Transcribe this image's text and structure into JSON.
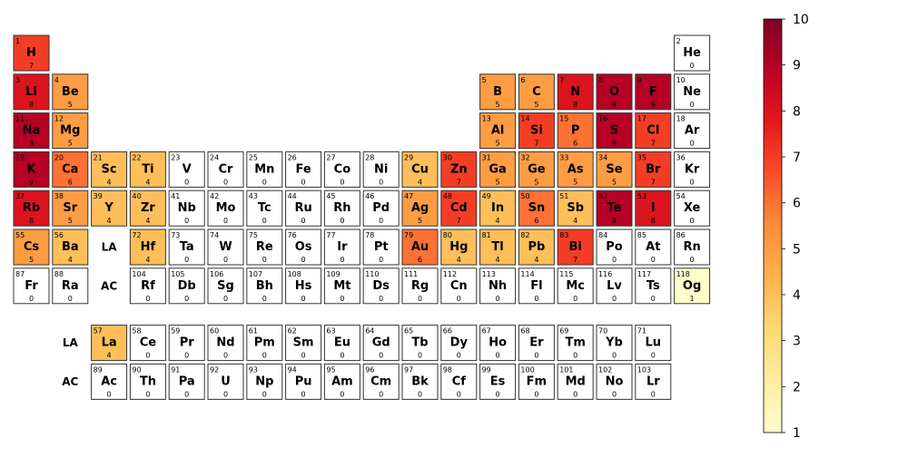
{
  "chart_data": {
    "type": "heatmap",
    "title": "",
    "layout": "periodic-table",
    "colormap": "YlOrRd",
    "colorbar": {
      "min": 1,
      "max": 10,
      "ticks": [
        1,
        2,
        3,
        4,
        5,
        6,
        7,
        8,
        9,
        10
      ]
    },
    "cells": [
      {
        "z": 1,
        "symbol": "H",
        "value": 7,
        "group": 1,
        "period": 1
      },
      {
        "z": 2,
        "symbol": "He",
        "value": 0,
        "group": 18,
        "period": 1
      },
      {
        "z": 3,
        "symbol": "Li",
        "value": 8,
        "group": 1,
        "period": 2
      },
      {
        "z": 4,
        "symbol": "Be",
        "value": 5,
        "group": 2,
        "period": 2
      },
      {
        "z": 5,
        "symbol": "B",
        "value": 5,
        "group": 13,
        "period": 2
      },
      {
        "z": 6,
        "symbol": "C",
        "value": 5,
        "group": 14,
        "period": 2
      },
      {
        "z": 7,
        "symbol": "N",
        "value": 8,
        "group": 15,
        "period": 2
      },
      {
        "z": 8,
        "symbol": "O",
        "value": 9,
        "group": 16,
        "period": 2
      },
      {
        "z": 9,
        "symbol": "F",
        "value": 9,
        "group": 17,
        "period": 2
      },
      {
        "z": 10,
        "symbol": "Ne",
        "value": 0,
        "group": 18,
        "period": 2
      },
      {
        "z": 11,
        "symbol": "Na",
        "value": 9,
        "group": 1,
        "period": 3
      },
      {
        "z": 12,
        "symbol": "Mg",
        "value": 5,
        "group": 2,
        "period": 3
      },
      {
        "z": 13,
        "symbol": "Al",
        "value": 5,
        "group": 13,
        "period": 3
      },
      {
        "z": 14,
        "symbol": "Si",
        "value": 7,
        "group": 14,
        "period": 3
      },
      {
        "z": 15,
        "symbol": "P",
        "value": 6,
        "group": 15,
        "period": 3
      },
      {
        "z": 16,
        "symbol": "S",
        "value": 9,
        "group": 16,
        "period": 3
      },
      {
        "z": 17,
        "symbol": "Cl",
        "value": 7,
        "group": 17,
        "period": 3
      },
      {
        "z": 18,
        "symbol": "Ar",
        "value": 0,
        "group": 18,
        "period": 3
      },
      {
        "z": 19,
        "symbol": "K",
        "value": 9,
        "group": 1,
        "period": 4
      },
      {
        "z": 20,
        "symbol": "Ca",
        "value": 6,
        "group": 2,
        "period": 4
      },
      {
        "z": 21,
        "symbol": "Sc",
        "value": 4,
        "group": 3,
        "period": 4
      },
      {
        "z": 22,
        "symbol": "Ti",
        "value": 4,
        "group": 4,
        "period": 4
      },
      {
        "z": 23,
        "symbol": "V",
        "value": 0,
        "group": 5,
        "period": 4
      },
      {
        "z": 24,
        "symbol": "Cr",
        "value": 0,
        "group": 6,
        "period": 4
      },
      {
        "z": 25,
        "symbol": "Mn",
        "value": 0,
        "group": 7,
        "period": 4
      },
      {
        "z": 26,
        "symbol": "Fe",
        "value": 0,
        "group": 8,
        "period": 4
      },
      {
        "z": 27,
        "symbol": "Co",
        "value": 0,
        "group": 9,
        "period": 4
      },
      {
        "z": 28,
        "symbol": "Ni",
        "value": 0,
        "group": 10,
        "period": 4
      },
      {
        "z": 29,
        "symbol": "Cu",
        "value": 4,
        "group": 11,
        "period": 4
      },
      {
        "z": 30,
        "symbol": "Zn",
        "value": 7,
        "group": 12,
        "period": 4
      },
      {
        "z": 31,
        "symbol": "Ga",
        "value": 5,
        "group": 13,
        "period": 4
      },
      {
        "z": 32,
        "symbol": "Ge",
        "value": 5,
        "group": 14,
        "period": 4
      },
      {
        "z": 33,
        "symbol": "As",
        "value": 5,
        "group": 15,
        "period": 4
      },
      {
        "z": 34,
        "symbol": "Se",
        "value": 5,
        "group": 16,
        "period": 4
      },
      {
        "z": 35,
        "symbol": "Br",
        "value": 7,
        "group": 17,
        "period": 4
      },
      {
        "z": 36,
        "symbol": "Kr",
        "value": 0,
        "group": 18,
        "period": 4
      },
      {
        "z": 37,
        "symbol": "Rb",
        "value": 8,
        "group": 1,
        "period": 5
      },
      {
        "z": 38,
        "symbol": "Sr",
        "value": 5,
        "group": 2,
        "period": 5
      },
      {
        "z": 39,
        "symbol": "Y",
        "value": 4,
        "group": 3,
        "period": 5
      },
      {
        "z": 40,
        "symbol": "Zr",
        "value": 4,
        "group": 4,
        "period": 5
      },
      {
        "z": 41,
        "symbol": "Nb",
        "value": 0,
        "group": 5,
        "period": 5
      },
      {
        "z": 42,
        "symbol": "Mo",
        "value": 0,
        "group": 6,
        "period": 5
      },
      {
        "z": 43,
        "symbol": "Tc",
        "value": 0,
        "group": 7,
        "period": 5
      },
      {
        "z": 44,
        "symbol": "Ru",
        "value": 0,
        "group": 8,
        "period": 5
      },
      {
        "z": 45,
        "symbol": "Rh",
        "value": 0,
        "group": 9,
        "period": 5
      },
      {
        "z": 46,
        "symbol": "Pd",
        "value": 0,
        "group": 10,
        "period": 5
      },
      {
        "z": 47,
        "symbol": "Ag",
        "value": 5,
        "group": 11,
        "period": 5
      },
      {
        "z": 48,
        "symbol": "Cd",
        "value": 7,
        "group": 12,
        "period": 5
      },
      {
        "z": 49,
        "symbol": "In",
        "value": 4,
        "group": 13,
        "period": 5
      },
      {
        "z": 50,
        "symbol": "Sn",
        "value": 6,
        "group": 14,
        "period": 5
      },
      {
        "z": 51,
        "symbol": "Sb",
        "value": 4,
        "group": 15,
        "period": 5
      },
      {
        "z": 52,
        "symbol": "Te",
        "value": 9,
        "group": 16,
        "period": 5
      },
      {
        "z": 53,
        "symbol": "I",
        "value": 8,
        "group": 17,
        "period": 5
      },
      {
        "z": 54,
        "symbol": "Xe",
        "value": 0,
        "group": 18,
        "period": 5
      },
      {
        "z": 55,
        "symbol": "Cs",
        "value": 5,
        "group": 1,
        "period": 6
      },
      {
        "z": 56,
        "symbol": "Ba",
        "value": 4,
        "group": 2,
        "period": 6
      },
      {
        "z": 72,
        "symbol": "Hf",
        "value": 4,
        "group": 4,
        "period": 6
      },
      {
        "z": 73,
        "symbol": "Ta",
        "value": 0,
        "group": 5,
        "period": 6
      },
      {
        "z": 74,
        "symbol": "W",
        "value": 0,
        "group": 6,
        "period": 6
      },
      {
        "z": 75,
        "symbol": "Re",
        "value": 0,
        "group": 7,
        "period": 6
      },
      {
        "z": 76,
        "symbol": "Os",
        "value": 0,
        "group": 8,
        "period": 6
      },
      {
        "z": 77,
        "symbol": "Ir",
        "value": 0,
        "group": 9,
        "period": 6
      },
      {
        "z": 78,
        "symbol": "Pt",
        "value": 0,
        "group": 10,
        "period": 6
      },
      {
        "z": 79,
        "symbol": "Au",
        "value": 6,
        "group": 11,
        "period": 6
      },
      {
        "z": 80,
        "symbol": "Hg",
        "value": 4,
        "group": 12,
        "period": 6
      },
      {
        "z": 81,
        "symbol": "Tl",
        "value": 4,
        "group": 13,
        "period": 6
      },
      {
        "z": 82,
        "symbol": "Pb",
        "value": 4,
        "group": 14,
        "period": 6
      },
      {
        "z": 83,
        "symbol": "Bi",
        "value": 7,
        "group": 15,
        "period": 6
      },
      {
        "z": 84,
        "symbol": "Po",
        "value": 0,
        "group": 16,
        "period": 6
      },
      {
        "z": 85,
        "symbol": "At",
        "value": 0,
        "group": 17,
        "period": 6
      },
      {
        "z": 86,
        "symbol": "Rn",
        "value": 0,
        "group": 18,
        "period": 6
      },
      {
        "z": 87,
        "symbol": "Fr",
        "value": 0,
        "group": 1,
        "period": 7
      },
      {
        "z": 88,
        "symbol": "Ra",
        "value": 0,
        "group": 2,
        "period": 7
      },
      {
        "z": 104,
        "symbol": "Rf",
        "value": 0,
        "group": 4,
        "period": 7
      },
      {
        "z": 105,
        "symbol": "Db",
        "value": 0,
        "group": 5,
        "period": 7
      },
      {
        "z": 106,
        "symbol": "Sg",
        "value": 0,
        "group": 6,
        "period": 7
      },
      {
        "z": 107,
        "symbol": "Bh",
        "value": 0,
        "group": 7,
        "period": 7
      },
      {
        "z": 108,
        "symbol": "Hs",
        "value": 0,
        "group": 8,
        "period": 7
      },
      {
        "z": 109,
        "symbol": "Mt",
        "value": 0,
        "group": 9,
        "period": 7
      },
      {
        "z": 110,
        "symbol": "Ds",
        "value": 0,
        "group": 10,
        "period": 7
      },
      {
        "z": 111,
        "symbol": "Rg",
        "value": 0,
        "group": 11,
        "period": 7
      },
      {
        "z": 112,
        "symbol": "Cn",
        "value": 0,
        "group": 12,
        "period": 7
      },
      {
        "z": 113,
        "symbol": "Nh",
        "value": 0,
        "group": 13,
        "period": 7
      },
      {
        "z": 114,
        "symbol": "Fl",
        "value": 0,
        "group": 14,
        "period": 7
      },
      {
        "z": 115,
        "symbol": "Mc",
        "value": 0,
        "group": 15,
        "period": 7
      },
      {
        "z": 116,
        "symbol": "Lv",
        "value": 0,
        "group": 16,
        "period": 7
      },
      {
        "z": 117,
        "symbol": "Ts",
        "value": 0,
        "group": 17,
        "period": 7
      },
      {
        "z": 118,
        "symbol": "Og",
        "value": 1,
        "group": 18,
        "period": 7
      },
      {
        "z": 57,
        "symbol": "La",
        "value": 4,
        "group": 3,
        "period": 8
      },
      {
        "z": 58,
        "symbol": "Ce",
        "value": 0,
        "group": 4,
        "period": 8
      },
      {
        "z": 59,
        "symbol": "Pr",
        "value": 0,
        "group": 5,
        "period": 8
      },
      {
        "z": 60,
        "symbol": "Nd",
        "value": 0,
        "group": 6,
        "period": 8
      },
      {
        "z": 61,
        "symbol": "Pm",
        "value": 0,
        "group": 7,
        "period": 8
      },
      {
        "z": 62,
        "symbol": "Sm",
        "value": 0,
        "group": 8,
        "period": 8
      },
      {
        "z": 63,
        "symbol": "Eu",
        "value": 0,
        "group": 9,
        "period": 8
      },
      {
        "z": 64,
        "symbol": "Gd",
        "value": 0,
        "group": 10,
        "period": 8
      },
      {
        "z": 65,
        "symbol": "Tb",
        "value": 0,
        "group": 11,
        "period": 8
      },
      {
        "z": 66,
        "symbol": "Dy",
        "value": 0,
        "group": 12,
        "period": 8
      },
      {
        "z": 67,
        "symbol": "Ho",
        "value": 0,
        "group": 13,
        "period": 8
      },
      {
        "z": 68,
        "symbol": "Er",
        "value": 0,
        "group": 14,
        "period": 8
      },
      {
        "z": 69,
        "symbol": "Tm",
        "value": 0,
        "group": 15,
        "period": 8
      },
      {
        "z": 70,
        "symbol": "Yb",
        "value": 0,
        "group": 16,
        "period": 8
      },
      {
        "z": 71,
        "symbol": "Lu",
        "value": 0,
        "group": 17,
        "period": 8
      },
      {
        "z": 89,
        "symbol": "Ac",
        "value": 0,
        "group": 3,
        "period": 9
      },
      {
        "z": 90,
        "symbol": "Th",
        "value": 0,
        "group": 4,
        "period": 9
      },
      {
        "z": 91,
        "symbol": "Pa",
        "value": 0,
        "group": 5,
        "period": 9
      },
      {
        "z": 92,
        "symbol": "U",
        "value": 0,
        "group": 6,
        "period": 9
      },
      {
        "z": 93,
        "symbol": "Np",
        "value": 0,
        "group": 7,
        "period": 9
      },
      {
        "z": 94,
        "symbol": "Pu",
        "value": 0,
        "group": 8,
        "period": 9
      },
      {
        "z": 95,
        "symbol": "Am",
        "value": 0,
        "group": 9,
        "period": 9
      },
      {
        "z": 96,
        "symbol": "Cm",
        "value": 0,
        "group": 10,
        "period": 9
      },
      {
        "z": 97,
        "symbol": "Bk",
        "value": 0,
        "group": 11,
        "period": 9
      },
      {
        "z": 98,
        "symbol": "Cf",
        "value": 0,
        "group": 12,
        "period": 9
      },
      {
        "z": 99,
        "symbol": "Es",
        "value": 0,
        "group": 13,
        "period": 9
      },
      {
        "z": 100,
        "symbol": "Fm",
        "value": 0,
        "group": 14,
        "period": 9
      },
      {
        "z": 101,
        "symbol": "Md",
        "value": 0,
        "group": 15,
        "period": 9
      },
      {
        "z": 102,
        "symbol": "No",
        "value": 0,
        "group": 16,
        "period": 9
      },
      {
        "z": 103,
        "symbol": "Lr",
        "value": 0,
        "group": 17,
        "period": 9
      }
    ],
    "placeholders": [
      {
        "label": "LA",
        "group": 3,
        "period": 6
      },
      {
        "label": "AC",
        "group": 3,
        "period": 7
      },
      {
        "label": "LA",
        "group": 2,
        "period": 8
      },
      {
        "label": "AC",
        "group": 2,
        "period": 9
      }
    ]
  }
}
